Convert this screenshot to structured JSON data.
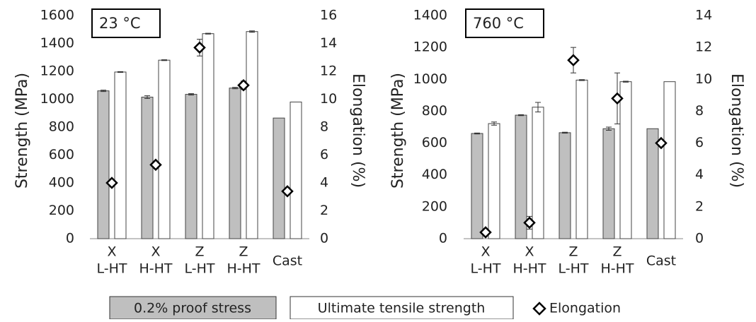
{
  "chart_data": [
    {
      "type": "bar",
      "annotation": "23 °C",
      "y_label": "Strength (MPa)",
      "y2_label": "Elongation (%)",
      "categories": [
        [
          "X",
          "L-HT"
        ],
        [
          "X",
          "H-HT"
        ],
        [
          "Z",
          "L-HT"
        ],
        [
          "Z",
          "H-HT"
        ],
        [
          "Cast"
        ]
      ],
      "ylim": [
        0,
        1600
      ],
      "yticks": [
        0,
        200,
        400,
        600,
        800,
        1000,
        1200,
        1400,
        1600
      ],
      "y2lim": [
        0,
        16
      ],
      "y2ticks": [
        0,
        2,
        4,
        6,
        8,
        10,
        12,
        14,
        16
      ],
      "series": [
        {
          "name": "0.2% proof stress",
          "color": "#bfbfbf",
          "values": [
            1060,
            1015,
            1035,
            1080,
            865
          ],
          "errors": [
            5,
            10,
            5,
            5,
            0
          ]
        },
        {
          "name": "Ultimate tensile strength",
          "color": "#ffffff",
          "values": [
            1195,
            1280,
            1470,
            1485,
            980
          ],
          "errors": [
            3,
            3,
            3,
            5,
            0
          ]
        },
        {
          "name": "Elongation",
          "color": "#ffffff",
          "axis": "y2",
          "values": [
            4.0,
            5.3,
            13.7,
            11.0,
            3.4
          ],
          "errors": [
            0.1,
            0.1,
            0.6,
            0.3,
            0
          ]
        }
      ]
    },
    {
      "type": "bar",
      "annotation": "760 °C",
      "y_label": "Strength (MPa)",
      "y2_label": "Elongation (%)",
      "categories": [
        [
          "X",
          "L-HT"
        ],
        [
          "X",
          "H-HT"
        ],
        [
          "Z",
          "L-HT"
        ],
        [
          "Z",
          "H-HT"
        ],
        [
          "Cast"
        ]
      ],
      "ylim": [
        0,
        1400
      ],
      "yticks": [
        0,
        200,
        400,
        600,
        800,
        1000,
        1200,
        1400
      ],
      "y2lim": [
        0,
        14
      ],
      "y2ticks": [
        0,
        2,
        4,
        6,
        8,
        10,
        12,
        14
      ],
      "series": [
        {
          "color": "#bfbfbf",
          "values": [
            660,
            775,
            665,
            690,
            690
          ],
          "errors": [
            3,
            3,
            3,
            10,
            0
          ]
        },
        {
          "color": "#ffffff",
          "values": [
            722,
            825,
            995,
            985,
            985
          ],
          "errors": [
            10,
            30,
            3,
            3,
            0
          ]
        },
        {
          "color": "#ffffff",
          "axis": "y2",
          "values": [
            0.4,
            1.0,
            11.2,
            8.8,
            6.0
          ],
          "errors": [
            0.1,
            0.4,
            0.8,
            1.6,
            0
          ]
        }
      ]
    }
  ]
}
